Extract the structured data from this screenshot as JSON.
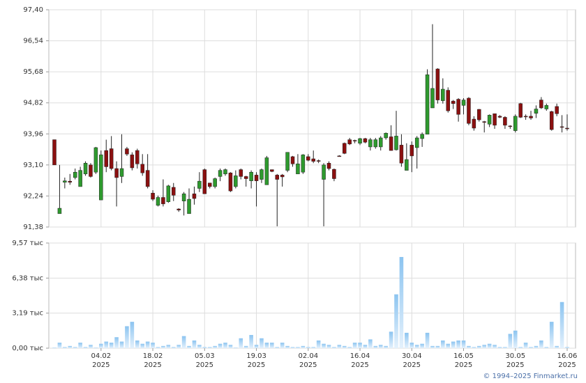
{
  "chart_data": [
    {
      "type": "candlestick",
      "up_color": "#2e9a2e",
      "down_color": "#8b1010",
      "grid": true,
      "ylim": [
        91.38,
        97.4
      ],
      "yticks": [
        {
          "value": 91.38,
          "label": "91,38"
        },
        {
          "value": 92.24,
          "label": "92,24"
        },
        {
          "value": 93.1,
          "label": "93,10"
        },
        {
          "value": 93.96,
          "label": "93,96"
        },
        {
          "value": 94.82,
          "label": "94,82"
        },
        {
          "value": 95.68,
          "label": "95,68"
        },
        {
          "value": 96.54,
          "label": "96,54"
        },
        {
          "value": 97.4,
          "label": "97,40"
        }
      ],
      "open": [
        93.8,
        91.75,
        92.62,
        92.65,
        92.75,
        92.5,
        92.85,
        93.1,
        92.9,
        92.13,
        93.5,
        93.55,
        93.0,
        92.78,
        93.55,
        93.38,
        93.5,
        93.12,
        92.95,
        92.32,
        91.98,
        92.2,
        92.08,
        92.48,
        91.88,
        92.1,
        91.75,
        92.3,
        92.45,
        92.97,
        92.6,
        92.5,
        92.78,
        92.85,
        92.88,
        92.5,
        92.97,
        92.78,
        92.66,
        92.82,
        92.7,
        92.55,
        92.97,
        92.82,
        92.82,
        92.95,
        93.33,
        92.85,
        92.9,
        93.33,
        93.27,
        93.22,
        92.7,
        93.15,
        92.98,
        93.35,
        93.7,
        93.8,
        93.78,
        93.7,
        93.83,
        93.6,
        93.6,
        93.6,
        93.85,
        93.88,
        93.52,
        93.65,
        92.95,
        93.65,
        93.58,
        93.83,
        93.95,
        94.68,
        95.76,
        94.88,
        95.17,
        94.87,
        94.92,
        94.75,
        94.95,
        94.37,
        94.64,
        94.3,
        94.23,
        94.52,
        94.45,
        94.42,
        94.18,
        94.05,
        94.8,
        94.45,
        94.45,
        94.53,
        94.9,
        94.65,
        94.58,
        94.72,
        94.16,
        94.12
      ],
      "high": [
        93.8,
        93.1,
        92.75,
        92.85,
        93.0,
        93.05,
        93.2,
        93.15,
        93.6,
        93.5,
        93.8,
        93.9,
        93.2,
        93.95,
        93.6,
        93.45,
        93.55,
        93.4,
        93.4,
        92.4,
        92.25,
        92.7,
        92.55,
        92.6,
        91.9,
        92.35,
        92.45,
        92.5,
        92.9,
        93.0,
        92.6,
        92.75,
        93.0,
        93.0,
        92.9,
        92.95,
        93.0,
        92.8,
        92.95,
        92.9,
        93.0,
        93.35,
        92.97,
        92.85,
        92.85,
        93.45,
        93.35,
        93.4,
        93.4,
        93.4,
        93.5,
        93.25,
        93.15,
        93.2,
        93.0,
        93.37,
        93.72,
        93.85,
        93.8,
        93.85,
        93.85,
        93.85,
        93.85,
        93.9,
        94.0,
        94.2,
        94.6,
        93.95,
        93.7,
        93.75,
        93.9,
        94.0,
        95.75,
        97.0,
        95.78,
        95.5,
        95.25,
        94.9,
        94.95,
        94.95,
        94.98,
        94.45,
        94.65,
        94.32,
        94.5,
        94.52,
        94.48,
        94.45,
        94.2,
        94.5,
        94.82,
        94.5,
        94.6,
        94.75,
        94.98,
        94.8,
        94.6,
        94.8,
        94.48,
        94.5
      ],
      "low": [
        93.1,
        91.75,
        92.45,
        92.55,
        92.7,
        92.5,
        92.8,
        92.75,
        92.85,
        92.13,
        92.9,
        92.95,
        91.95,
        92.6,
        93.35,
        92.95,
        93.0,
        92.8,
        92.45,
        92.1,
        91.95,
        91.95,
        92.05,
        92.1,
        91.8,
        91.7,
        91.75,
        92.0,
        92.35,
        92.3,
        92.45,
        92.45,
        92.65,
        92.8,
        92.35,
        92.45,
        92.7,
        92.5,
        92.45,
        91.95,
        92.6,
        92.55,
        92.9,
        91.4,
        92.5,
        92.9,
        93.05,
        92.85,
        92.85,
        93.2,
        93.15,
        93.15,
        91.4,
        92.95,
        92.65,
        93.33,
        93.4,
        93.65,
        93.7,
        93.65,
        93.7,
        93.5,
        93.55,
        93.5,
        93.8,
        93.5,
        93.5,
        93.05,
        92.95,
        92.9,
        93.0,
        93.6,
        93.95,
        94.68,
        94.8,
        94.8,
        94.55,
        94.65,
        94.3,
        94.5,
        94.2,
        94.05,
        94.3,
        94.0,
        94.15,
        94.1,
        94.4,
        94.1,
        94.1,
        94.0,
        94.4,
        94.35,
        94.35,
        94.4,
        94.65,
        94.6,
        94.05,
        94.45,
        94.0,
        94.05
      ],
      "close": [
        93.1,
        91.9,
        92.66,
        92.62,
        92.9,
        92.95,
        93.15,
        92.78,
        93.58,
        93.38,
        93.05,
        93.0,
        92.75,
        93.0,
        93.4,
        93.02,
        93.13,
        92.88,
        92.5,
        92.15,
        92.2,
        92.02,
        92.52,
        92.26,
        91.85,
        92.3,
        92.15,
        92.17,
        92.65,
        92.3,
        92.5,
        92.72,
        92.95,
        92.97,
        92.38,
        92.8,
        92.78,
        92.72,
        92.9,
        92.66,
        92.97,
        93.3,
        92.92,
        92.7,
        92.77,
        93.45,
        93.13,
        93.13,
        93.38,
        93.23,
        93.2,
        93.2,
        93.1,
        93.0,
        92.72,
        93.34,
        93.42,
        93.68,
        93.77,
        93.83,
        93.73,
        93.8,
        93.8,
        93.85,
        93.98,
        93.5,
        93.9,
        93.15,
        93.25,
        93.35,
        93.85,
        93.95,
        95.6,
        95.22,
        94.9,
        95.2,
        94.6,
        94.8,
        94.5,
        94.9,
        94.25,
        94.12,
        94.35,
        94.28,
        94.48,
        94.2,
        94.42,
        94.2,
        94.17,
        94.45,
        94.42,
        94.43,
        94.4,
        94.65,
        94.68,
        94.75,
        94.08,
        94.52,
        94.15,
        94.1
      ]
    },
    {
      "type": "bar",
      "color": "#8cc4f0",
      "grid": true,
      "ylim": [
        0,
        9.57
      ],
      "yticks": [
        {
          "value": 0,
          "label": "0,00 тыс"
        },
        {
          "value": 3.19,
          "label": "3,19 тыс"
        },
        {
          "value": 6.38,
          "label": "6,38 тыс"
        },
        {
          "value": 9.57,
          "label": "9,57 тыс"
        }
      ],
      "categories": [
        null,
        null,
        null,
        null,
        null,
        null,
        null,
        null,
        null,
        "04.02 2025",
        null,
        null,
        null,
        null,
        null,
        null,
        null,
        null,
        null,
        "18.02 2025",
        null,
        null,
        null,
        null,
        null,
        null,
        null,
        null,
        null,
        "05.03 2025",
        null,
        null,
        null,
        null,
        null,
        null,
        null,
        null,
        null,
        "19.03 2025",
        null,
        null,
        null,
        null,
        null,
        null,
        null,
        null,
        null,
        "02.04 2025",
        null,
        null,
        null,
        null,
        null,
        null,
        null,
        null,
        null,
        "16.04 2025",
        null,
        null,
        null,
        null,
        null,
        null,
        null,
        null,
        null,
        "30.04 2025",
        null,
        null,
        null,
        null,
        null,
        null,
        null,
        null,
        null,
        "16.05 2025",
        null,
        null,
        null,
        null,
        null,
        null,
        null,
        null,
        null,
        "30.05 2025",
        null,
        null,
        null,
        null,
        null,
        null,
        null,
        null,
        null,
        "16.06 2025"
      ],
      "values": [
        0.05,
        0.5,
        0.1,
        0.2,
        0.1,
        0.5,
        0.1,
        0.3,
        0.05,
        0.4,
        0.6,
        0.5,
        1.0,
        0.6,
        2.0,
        2.4,
        0.7,
        0.4,
        0.6,
        0.5,
        0.1,
        0.2,
        0.3,
        0.1,
        0.3,
        1.1,
        0.2,
        0.7,
        0.3,
        0.1,
        0.1,
        0.2,
        0.4,
        0.5,
        0.3,
        0.05,
        0.9,
        0.2,
        1.2,
        0.3,
        0.9,
        0.5,
        0.5,
        0.1,
        0.5,
        0.2,
        0.1,
        0.1,
        0.2,
        0.1,
        0.1,
        0.7,
        0.4,
        0.3,
        0.1,
        0.3,
        0.2,
        0.1,
        0.5,
        0.5,
        0.3,
        0.8,
        0.2,
        0.3,
        0.2,
        1.5,
        4.9,
        8.3,
        1.4,
        0.5,
        0.3,
        0.4,
        1.4,
        0.2,
        0.2,
        0.7,
        0.4,
        0.6,
        0.7,
        0.7,
        0.2,
        0.1,
        0.2,
        0.3,
        0.4,
        0.3,
        0.1,
        0.1,
        1.3,
        1.6,
        0.1,
        0.5,
        0.1,
        0.2,
        0.7,
        0.1,
        2.4,
        0.2,
        4.2,
        0.1
      ]
    }
  ],
  "footer": "© 1994–2025 Finmarket.ru"
}
